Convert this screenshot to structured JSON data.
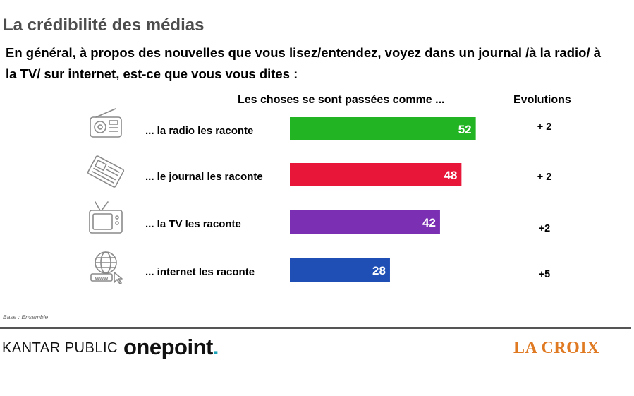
{
  "title": "La crédibilité des médias",
  "question": "En général, à propos des nouvelles que vous lisez/entendez, voyez dans un journal /à la radio/ à la TV/ sur internet, est-ce que vous vous dites :",
  "footer": {
    "base": "Base : Ensemble",
    "kantar": "KANTAR PUBLIC",
    "onepoint": "onepoint",
    "onepoint_dot": ".",
    "lacroix": "LA CROIX"
  },
  "chart_data": {
    "type": "bar",
    "orientation": "horizontal",
    "header_bars": "Les choses se sont passées comme ...",
    "header_evolutions": "Evolutions",
    "categories": [
      "... la radio les raconte",
      "... le journal les raconte",
      "... la TV les raconte",
      "... internet les raconte"
    ],
    "values": [
      52,
      48,
      42,
      28
    ],
    "evolutions": [
      "+ 2",
      "+ 2",
      "+2",
      "+5"
    ],
    "icons": [
      "radio-icon",
      "newspaper-icon",
      "tv-icon",
      "internet-globe-icon"
    ],
    "colors": [
      "#22b422",
      "#e8173a",
      "#7b2fb3",
      "#1f4fb5"
    ],
    "xlim": [
      0,
      100
    ],
    "grid": false,
    "legend": "none"
  }
}
